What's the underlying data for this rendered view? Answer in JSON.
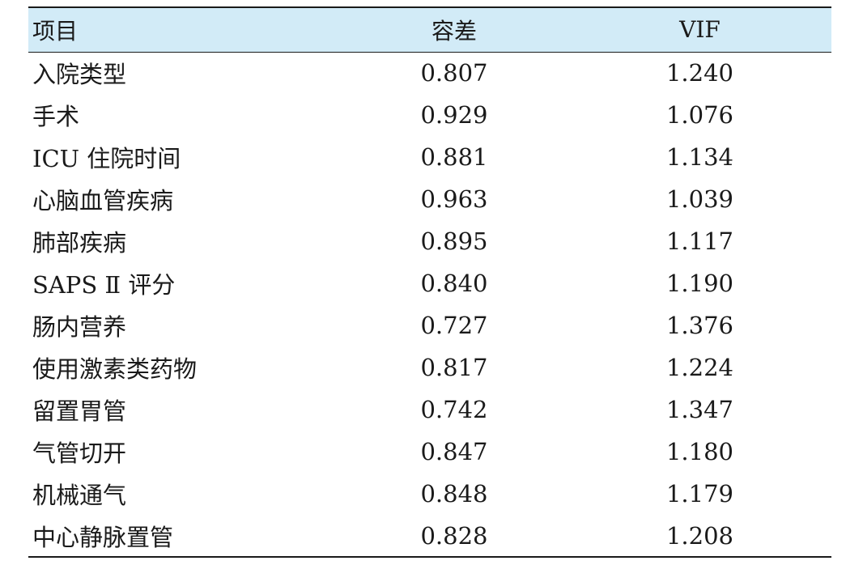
{
  "table": {
    "headers": {
      "item": "项目",
      "tolerance": "容差",
      "vif": "VIF"
    },
    "rows": [
      {
        "item": "入院类型",
        "tolerance": "0.807",
        "vif": "1.240"
      },
      {
        "item": "手术",
        "tolerance": "0.929",
        "vif": "1.076"
      },
      {
        "item": "ICU 住院时间",
        "tolerance": "0.881",
        "vif": "1.134"
      },
      {
        "item": "心脑血管疾病",
        "tolerance": "0.963",
        "vif": "1.039"
      },
      {
        "item": "肺部疾病",
        "tolerance": "0.895",
        "vif": "1.117"
      },
      {
        "item": "SAPS Ⅱ 评分",
        "tolerance": "0.840",
        "vif": "1.190"
      },
      {
        "item": "肠内营养",
        "tolerance": "0.727",
        "vif": "1.376"
      },
      {
        "item": "使用激素类药物",
        "tolerance": "0.817",
        "vif": "1.224"
      },
      {
        "item": "留置胃管",
        "tolerance": "0.742",
        "vif": "1.347"
      },
      {
        "item": "气管切开",
        "tolerance": "0.847",
        "vif": "1.180"
      },
      {
        "item": "机械通气",
        "tolerance": "0.848",
        "vif": "1.179"
      },
      {
        "item": "中心静脉置管",
        "tolerance": "0.828",
        "vif": "1.208"
      }
    ]
  },
  "colors": {
    "header_background": "#d2ebf7",
    "rule_lines": "#1a1a1a",
    "text": "#1a1a1a"
  }
}
